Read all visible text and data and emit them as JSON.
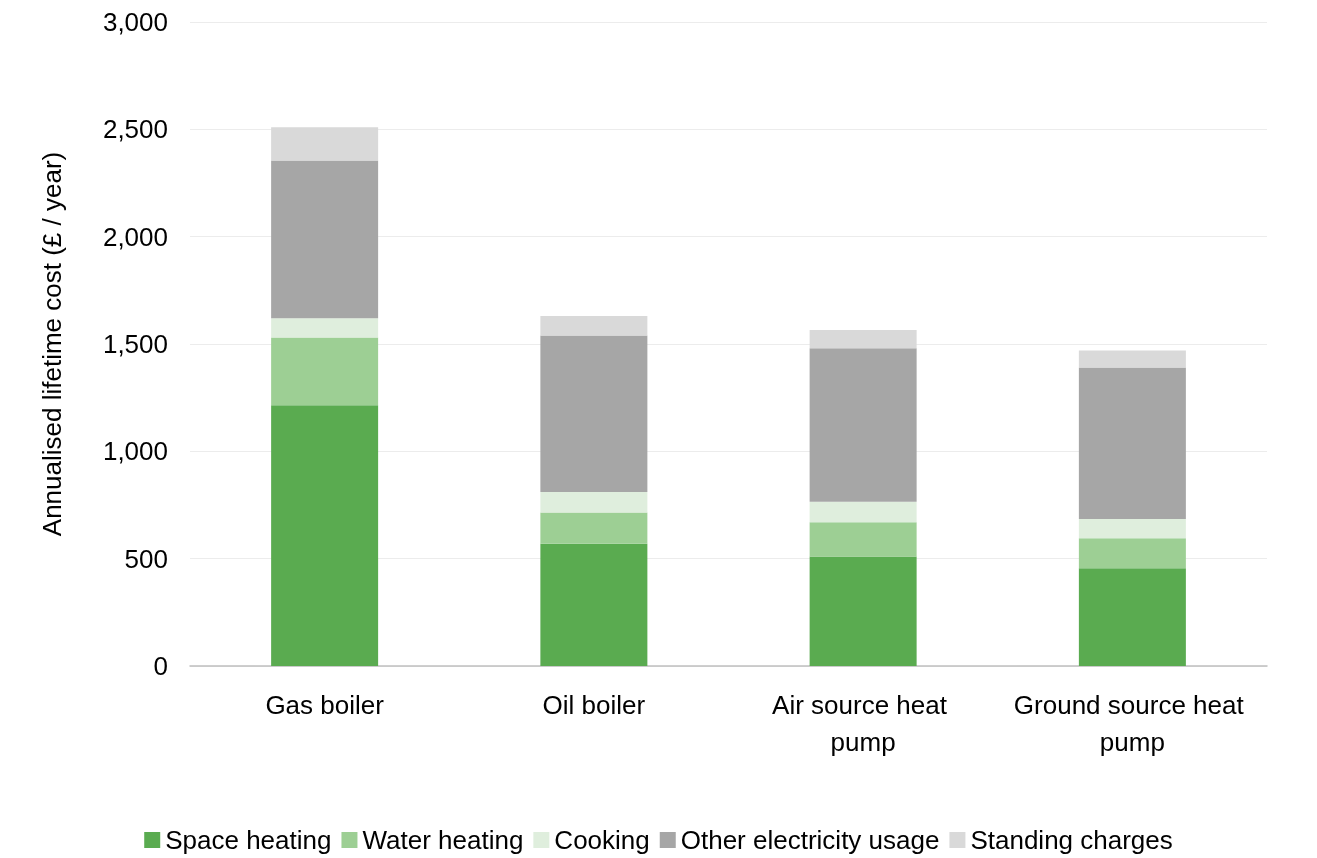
{
  "chart_data": {
    "type": "bar",
    "stacked": true,
    "ylabel": "Annualised lifetime cost (£ / year)",
    "categories": [
      "Gas boiler",
      "Oil boiler",
      "Air source heat pump",
      "Ground source heat pump"
    ],
    "series": [
      {
        "name": "Space heating",
        "color": "#5aab50",
        "values": [
          1215,
          570,
          510,
          455
        ]
      },
      {
        "name": "Water heating",
        "color": "#9dcf94",
        "values": [
          315,
          145,
          160,
          140
        ]
      },
      {
        "name": "Cooking",
        "color": "#dfeedd",
        "values": [
          90,
          95,
          95,
          90
        ]
      },
      {
        "name": "Other electricity usage",
        "color": "#a6a6a6",
        "values": [
          735,
          730,
          715,
          705
        ]
      },
      {
        "name": "Standing charges",
        "color": "#d9d9d9",
        "values": [
          155,
          90,
          85,
          80
        ]
      }
    ],
    "ylim": [
      0,
      3000
    ],
    "yticks": [
      0,
      500,
      {
        "value": 1000,
        "label": "1,000"
      },
      {
        "value": 1500,
        "label": "1,500"
      },
      {
        "value": 2000,
        "label": "2,000"
      },
      {
        "value": 2500,
        "label": "2,500"
      },
      {
        "value": 3000,
        "label": "3,000"
      }
    ],
    "grid": "y",
    "legend": "bottom"
  }
}
